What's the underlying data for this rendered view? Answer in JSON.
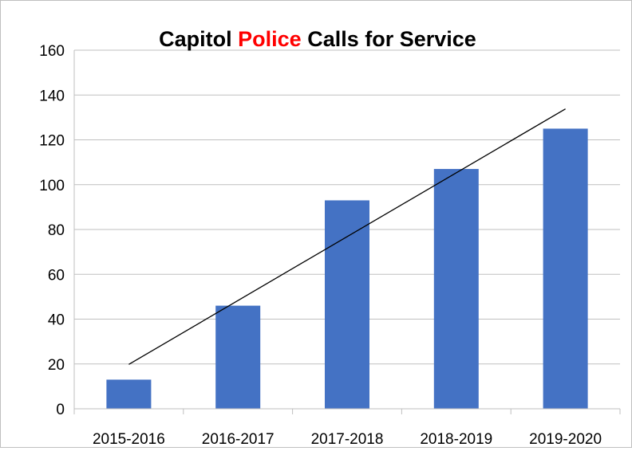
{
  "chart_data": {
    "type": "bar",
    "title_parts": [
      {
        "text": "Capitol ",
        "color": "#000000"
      },
      {
        "text": "Police",
        "color": "#ff0000"
      },
      {
        "text": " Calls for Service",
        "color": "#000000"
      }
    ],
    "categories": [
      "2015-2016",
      "2016-2017",
      "2017-2018",
      "2018-2019",
      "2019-2020"
    ],
    "values": [
      13,
      46,
      93,
      107,
      125
    ],
    "ylim": [
      0,
      160
    ],
    "yticks": [
      0,
      20,
      40,
      60,
      80,
      100,
      120,
      140,
      160
    ],
    "bar_color": "#4472c4",
    "gridlines": true,
    "trendline": {
      "type": "linear",
      "color": "#000000"
    },
    "legend": "none"
  }
}
